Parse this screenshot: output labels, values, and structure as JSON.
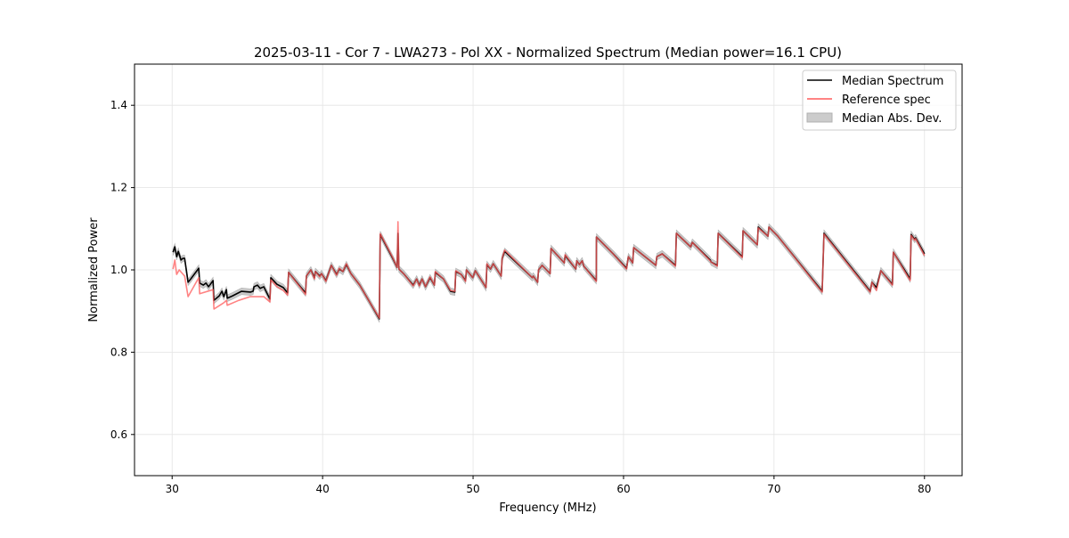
{
  "chart_data": {
    "type": "line",
    "title": "2025-03-11 - Cor 7 - LWA273 - Pol XX - Normalized Spectrum (Median power=16.1 CPU)",
    "xlabel": "Frequency (MHz)",
    "ylabel": "Normalized Power",
    "xlim": [
      27.5,
      82.5
    ],
    "ylim": [
      0.5,
      1.5
    ],
    "xticks": [
      30,
      40,
      50,
      60,
      70,
      80
    ],
    "xtick_labels": [
      "30",
      "40",
      "50",
      "60",
      "70",
      "80"
    ],
    "yticks": [
      0.6,
      0.8,
      1.0,
      1.2,
      1.4
    ],
    "ytick_labels": [
      "0.6",
      "0.8",
      "1.0",
      "1.2",
      "1.4"
    ],
    "grid": true,
    "legend_position": "top-right",
    "legend": [
      "Median Spectrum",
      "Reference spec",
      "Median Abs. Dev."
    ],
    "colors": {
      "median": "#000000",
      "reference": "#ff5a5a",
      "mad": "#b0b0b0"
    },
    "mad_halfwidth": 0.008,
    "series": [
      {
        "name": "Median Spectrum",
        "points": [
          [
            30.06,
            1.043
          ],
          [
            30.18,
            1.056
          ],
          [
            30.3,
            1.032
          ],
          [
            30.41,
            1.045
          ],
          [
            30.59,
            1.024
          ],
          [
            30.71,
            1.028
          ],
          [
            30.83,
            1.028
          ],
          [
            31.06,
            0.97
          ],
          [
            31.24,
            0.978
          ],
          [
            31.77,
            1.004
          ],
          [
            31.83,
            0.968
          ],
          [
            32.07,
            0.963
          ],
          [
            32.25,
            0.968
          ],
          [
            32.42,
            0.959
          ],
          [
            32.72,
            0.974
          ],
          [
            32.78,
            0.926
          ],
          [
            33.13,
            0.937
          ],
          [
            33.31,
            0.948
          ],
          [
            33.43,
            0.935
          ],
          [
            33.61,
            0.952
          ],
          [
            33.66,
            0.931
          ],
          [
            34.02,
            0.937
          ],
          [
            34.61,
            0.948
          ],
          [
            35.2,
            0.946
          ],
          [
            35.38,
            0.948
          ],
          [
            35.44,
            0.959
          ],
          [
            35.67,
            0.963
          ],
          [
            35.85,
            0.955
          ],
          [
            36.09,
            0.959
          ],
          [
            36.5,
            0.929
          ],
          [
            36.56,
            0.981
          ],
          [
            36.97,
            0.965
          ],
          [
            37.39,
            0.957
          ],
          [
            37.68,
            0.944
          ],
          [
            37.74,
            0.994
          ],
          [
            38.57,
            0.957
          ],
          [
            38.87,
            0.944
          ],
          [
            38.92,
            0.985
          ],
          [
            39.22,
            1.0
          ],
          [
            39.46,
            0.981
          ],
          [
            39.52,
            0.996
          ],
          [
            39.81,
            0.985
          ],
          [
            39.93,
            0.991
          ],
          [
            40.22,
            0.974
          ],
          [
            40.58,
            1.011
          ],
          [
            40.93,
            0.989
          ],
          [
            41.11,
            1.002
          ],
          [
            41.35,
            0.996
          ],
          [
            41.58,
            1.013
          ],
          [
            41.88,
            0.991
          ],
          [
            42.47,
            0.963
          ],
          [
            43.06,
            0.926
          ],
          [
            43.77,
            0.881
          ],
          [
            43.83,
            1.086
          ],
          [
            44.66,
            1.028
          ],
          [
            44.95,
            1.006
          ],
          [
            45.01,
            1.089
          ],
          [
            45.07,
            1.002
          ],
          [
            45.43,
            0.989
          ],
          [
            46.02,
            0.963
          ],
          [
            46.25,
            0.978
          ],
          [
            46.43,
            0.963
          ],
          [
            46.61,
            0.978
          ],
          [
            46.84,
            0.959
          ],
          [
            47.14,
            0.981
          ],
          [
            47.43,
            0.963
          ],
          [
            47.49,
            0.994
          ],
          [
            48.03,
            0.978
          ],
          [
            48.5,
            0.948
          ],
          [
            48.79,
            0.946
          ],
          [
            48.85,
            0.996
          ],
          [
            49.21,
            0.989
          ],
          [
            49.5,
            0.974
          ],
          [
            49.56,
            1.0
          ],
          [
            49.98,
            0.981
          ],
          [
            50.15,
            0.998
          ],
          [
            50.57,
            0.974
          ],
          [
            50.86,
            0.957
          ],
          [
            50.92,
            1.013
          ],
          [
            51.16,
            1.002
          ],
          [
            51.34,
            1.015
          ],
          [
            51.57,
            1.002
          ],
          [
            51.87,
            0.985
          ],
          [
            51.93,
            1.028
          ],
          [
            52.1,
            1.045
          ],
          [
            53.94,
            0.981
          ],
          [
            54.0,
            0.985
          ],
          [
            54.29,
            0.97
          ],
          [
            54.35,
            1.0
          ],
          [
            54.59,
            1.011
          ],
          [
            55.12,
            0.991
          ],
          [
            55.18,
            1.052
          ],
          [
            56.06,
            1.017
          ],
          [
            56.12,
            1.035
          ],
          [
            56.83,
            1.002
          ],
          [
            56.89,
            1.022
          ],
          [
            57.07,
            1.013
          ],
          [
            57.25,
            1.022
          ],
          [
            57.36,
            1.009
          ],
          [
            58.19,
            0.974
          ],
          [
            58.2,
            1.08
          ],
          [
            59.31,
            1.039
          ],
          [
            60.2,
            1.004
          ],
          [
            60.32,
            1.032
          ],
          [
            60.61,
            1.017
          ],
          [
            60.67,
            1.054
          ],
          [
            62.15,
            1.011
          ],
          [
            62.21,
            1.032
          ],
          [
            62.57,
            1.039
          ],
          [
            63.45,
            1.011
          ],
          [
            63.51,
            1.089
          ],
          [
            64.46,
            1.056
          ],
          [
            64.57,
            1.067
          ],
          [
            65.76,
            1.024
          ],
          [
            65.82,
            1.019
          ],
          [
            66.23,
            1.011
          ],
          [
            66.29,
            1.089
          ],
          [
            67.89,
            1.032
          ],
          [
            67.94,
            1.095
          ],
          [
            68.89,
            1.061
          ],
          [
            68.95,
            1.104
          ],
          [
            69.6,
            1.082
          ],
          [
            69.66,
            1.104
          ],
          [
            70.25,
            1.082
          ],
          [
            73.2,
            0.948
          ],
          [
            73.32,
            1.089
          ],
          [
            76.39,
            0.948
          ],
          [
            76.51,
            0.97
          ],
          [
            76.81,
            0.957
          ],
          [
            77.1,
            0.998
          ],
          [
            77.87,
            0.965
          ],
          [
            77.93,
            1.043
          ],
          [
            79.05,
            0.978
          ],
          [
            79.11,
            1.086
          ],
          [
            79.35,
            1.074
          ],
          [
            79.41,
            1.078
          ],
          [
            80.0,
            1.039
          ]
        ]
      },
      {
        "name": "Reference spec",
        "points": [
          [
            30.06,
            1.002
          ],
          [
            30.18,
            1.024
          ],
          [
            30.3,
            0.989
          ],
          [
            30.47,
            1.0
          ],
          [
            30.83,
            0.985
          ],
          [
            31.06,
            0.935
          ],
          [
            31.77,
            0.981
          ],
          [
            31.83,
            0.942
          ],
          [
            32.72,
            0.952
          ],
          [
            32.78,
            0.905
          ],
          [
            33.43,
            0.92
          ],
          [
            33.61,
            0.926
          ],
          [
            33.66,
            0.914
          ],
          [
            34.43,
            0.926
          ],
          [
            35.2,
            0.935
          ],
          [
            35.44,
            0.935
          ],
          [
            36.09,
            0.935
          ],
          [
            36.5,
            0.922
          ],
          [
            36.56,
            0.976
          ],
          [
            36.97,
            0.959
          ],
          [
            37.39,
            0.95
          ],
          [
            37.68,
            0.939
          ],
          [
            37.74,
            0.994
          ],
          [
            38.57,
            0.955
          ],
          [
            38.87,
            0.94
          ],
          [
            38.92,
            0.985
          ],
          [
            39.22,
            1.0
          ],
          [
            39.46,
            0.978
          ],
          [
            39.52,
            0.996
          ],
          [
            39.81,
            0.983
          ],
          [
            39.93,
            0.991
          ],
          [
            40.22,
            0.972
          ],
          [
            40.58,
            1.011
          ],
          [
            40.93,
            0.987
          ],
          [
            41.11,
            1.004
          ],
          [
            41.35,
            0.996
          ],
          [
            41.58,
            1.015
          ],
          [
            41.88,
            0.991
          ],
          [
            42.47,
            0.963
          ],
          [
            43.06,
            0.926
          ],
          [
            43.77,
            0.883
          ],
          [
            43.83,
            1.088
          ],
          [
            44.66,
            1.03
          ],
          [
            44.95,
            1.006
          ],
          [
            45.01,
            1.117
          ],
          [
            45.07,
            1.002
          ],
          [
            45.43,
            0.989
          ],
          [
            46.02,
            0.961
          ],
          [
            46.25,
            0.978
          ],
          [
            46.43,
            0.961
          ],
          [
            46.61,
            0.978
          ],
          [
            46.84,
            0.959
          ],
          [
            47.14,
            0.983
          ],
          [
            47.43,
            0.963
          ],
          [
            47.49,
            0.996
          ],
          [
            48.03,
            0.978
          ],
          [
            48.5,
            0.95
          ],
          [
            48.79,
            0.948
          ],
          [
            48.85,
            0.998
          ],
          [
            49.21,
            0.989
          ],
          [
            49.5,
            0.972
          ],
          [
            49.56,
            1.0
          ],
          [
            49.98,
            0.981
          ],
          [
            50.15,
            0.998
          ],
          [
            50.57,
            0.974
          ],
          [
            50.86,
            0.957
          ],
          [
            50.92,
            1.015
          ],
          [
            51.16,
            1.002
          ],
          [
            51.34,
            1.015
          ],
          [
            51.57,
            1.002
          ],
          [
            51.87,
            0.985
          ],
          [
            51.93,
            1.028
          ],
          [
            52.1,
            1.048
          ],
          [
            53.94,
            0.981
          ],
          [
            54.0,
            0.985
          ],
          [
            54.29,
            0.97
          ],
          [
            54.35,
            1.0
          ],
          [
            54.59,
            1.011
          ],
          [
            55.12,
            0.991
          ],
          [
            55.18,
            1.052
          ],
          [
            56.06,
            1.017
          ],
          [
            56.12,
            1.037
          ],
          [
            56.83,
            1.002
          ],
          [
            56.89,
            1.022
          ],
          [
            57.07,
            1.013
          ],
          [
            57.25,
            1.022
          ],
          [
            57.36,
            1.009
          ],
          [
            58.19,
            0.972
          ],
          [
            58.2,
            1.08
          ],
          [
            59.31,
            1.039
          ],
          [
            60.2,
            1.002
          ],
          [
            60.32,
            1.032
          ],
          [
            60.61,
            1.017
          ],
          [
            60.67,
            1.054
          ],
          [
            62.15,
            1.011
          ],
          [
            62.21,
            1.032
          ],
          [
            62.57,
            1.039
          ],
          [
            63.45,
            1.009
          ],
          [
            63.51,
            1.089
          ],
          [
            64.46,
            1.056
          ],
          [
            64.57,
            1.067
          ],
          [
            65.76,
            1.022
          ],
          [
            65.82,
            1.019
          ],
          [
            66.23,
            1.009
          ],
          [
            66.29,
            1.089
          ],
          [
            67.89,
            1.03
          ],
          [
            67.94,
            1.095
          ],
          [
            68.89,
            1.061
          ],
          [
            68.95,
            1.102
          ],
          [
            69.6,
            1.082
          ],
          [
            69.66,
            1.104
          ],
          [
            70.25,
            1.082
          ],
          [
            73.2,
            0.946
          ],
          [
            73.32,
            1.087
          ],
          [
            76.39,
            0.946
          ],
          [
            76.51,
            0.97
          ],
          [
            76.81,
            0.95
          ],
          [
            77.1,
            0.998
          ],
          [
            77.87,
            0.963
          ],
          [
            77.93,
            1.043
          ],
          [
            79.05,
            0.974
          ],
          [
            79.11,
            1.084
          ],
          [
            79.35,
            1.072
          ],
          [
            79.41,
            1.076
          ],
          [
            80.0,
            1.035
          ]
        ]
      }
    ]
  }
}
